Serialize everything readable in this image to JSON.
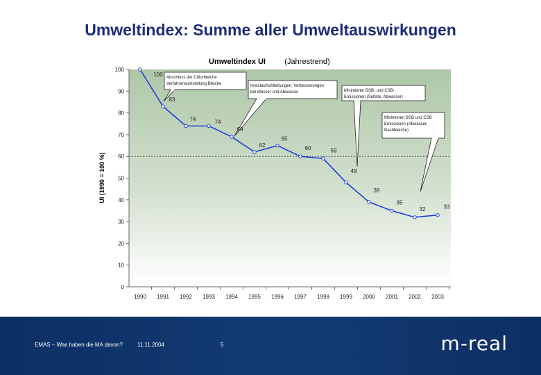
{
  "slide": {
    "title": "Umweltindex: Summe aller Umweltauswirkungen"
  },
  "footer": {
    "text_left": "EMAS – Was haben die MA davon?",
    "date": "11.11.2004",
    "page_number": "5",
    "logo_text": "m-real"
  },
  "colors": {
    "title": "#1c2b79",
    "line": "#1f3fd8",
    "plot_bg_top": "#aec7a8",
    "plot_bg_bottom": "#ffffff",
    "footer_bg": "#0d2f63"
  },
  "chart_data": {
    "type": "line",
    "title": "Umweltindex  UI",
    "subtitle": "(Jahrestrend)",
    "xlabel": "",
    "ylabel": "UI (1990 = 100 %)",
    "categories": [
      "1990",
      "1991",
      "1992",
      "1993",
      "1994",
      "1995",
      "1996",
      "1997",
      "1998",
      "1999",
      "2000",
      "2001",
      "2002",
      "2003"
    ],
    "values": [
      100,
      83,
      74,
      74,
      69,
      62,
      65,
      60,
      59,
      48,
      39,
      35,
      32,
      33
    ],
    "data_labels": [
      "100",
      "83",
      "74",
      "74",
      "69",
      "62",
      "65",
      "60",
      "59",
      "48",
      "39",
      "35",
      "32",
      "33"
    ],
    "ylim": [
      0,
      100
    ],
    "yticks": [
      "0",
      "10",
      "20",
      "30",
      "40",
      "50",
      "60",
      "70",
      "80",
      "90",
      "100"
    ],
    "reference_line": 60,
    "grid": false,
    "legend": "none",
    "annotations": [
      {
        "year_index": 0,
        "lines": [
          "Abschluss der Chlorbleiche",
          "Verfahrensumstellung Bleiche"
        ]
      },
      {
        "year_index": 4,
        "lines": [
          "Kreislaufschließungen, Verbesserungen",
          "bei Wasser und Abwasser"
        ]
      },
      {
        "year_index": 9,
        "lines": [
          "Minimieren BSB- und CSB-",
          "Emissionen (Sulfate, Abwasser)"
        ]
      },
      {
        "year_index": 12,
        "lines": [
          "Minimieren BSB und CSB",
          "Emissionen (Abwasser,",
          "Nachbleiche)"
        ]
      }
    ]
  }
}
